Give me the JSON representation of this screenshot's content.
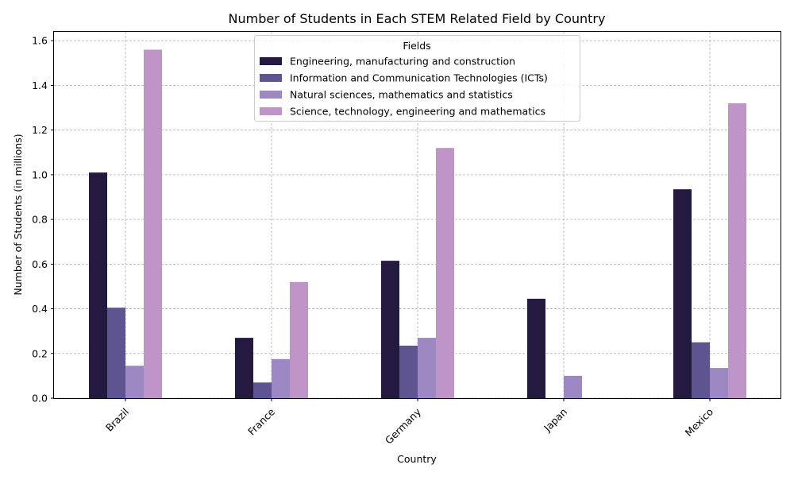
{
  "chart_data": {
    "type": "bar",
    "title": "Number of Students in Each STEM Related Field by Country",
    "xlabel": "Country",
    "ylabel": "Number of Students (in millions)",
    "categories": [
      "Brazil",
      "France",
      "Germany",
      "Japan",
      "Mexico"
    ],
    "ylim": [
      0,
      1.64
    ],
    "yticks": [
      0.0,
      0.2,
      0.4,
      0.6,
      0.8,
      1.0,
      1.2,
      1.4,
      1.6
    ],
    "ytick_labels": [
      "0.0",
      "0.2",
      "0.4",
      "0.6",
      "0.8",
      "1.0",
      "1.2",
      "1.4",
      "1.6"
    ],
    "grid": true,
    "legend": {
      "title": "Fields",
      "placement": "upper center"
    },
    "series": [
      {
        "name": "Engineering, manufacturing and construction",
        "color": "#241a40",
        "values": [
          1.01,
          0.27,
          0.615,
          0.445,
          0.935
        ]
      },
      {
        "name": "Information and Communication Technologies (ICTs)",
        "color": "#5d5490",
        "values": [
          0.405,
          0.07,
          0.235,
          null,
          0.25
        ]
      },
      {
        "name": "Natural sciences, mathematics and statistics",
        "color": "#9e88c4",
        "values": [
          0.145,
          0.175,
          0.27,
          0.1,
          0.135
        ]
      },
      {
        "name": "Science, technology, engineering and mathematics",
        "color": "#be95c6",
        "values": [
          1.56,
          0.52,
          1.12,
          null,
          1.32
        ]
      }
    ]
  }
}
